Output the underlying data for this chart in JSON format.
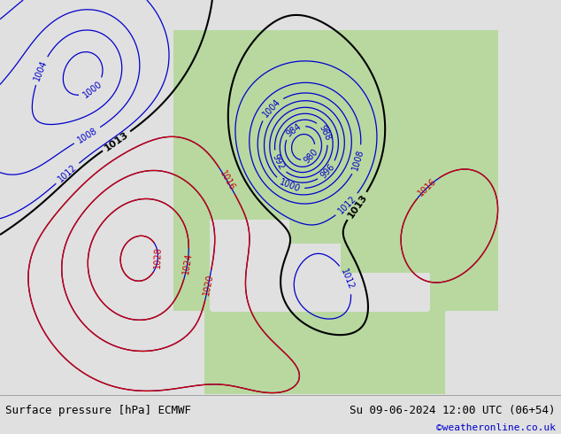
{
  "title_left": "Surface pressure [hPa] ECMWF",
  "title_right": "Su 09-06-2024 12:00 UTC (06+54)",
  "credit": "©weatheronline.co.uk",
  "ocean_color": "#c0d0dc",
  "land_color": "#b8d8a0",
  "footer_bg": "#e0e0e0",
  "blue_contour_color": "#0000cc",
  "red_contour_color": "#cc0000",
  "black_contour_color": "#000000",
  "label_fontsize": 7,
  "footer_fontsize": 9,
  "credit_fontsize": 8,
  "credit_color": "#0000cc"
}
